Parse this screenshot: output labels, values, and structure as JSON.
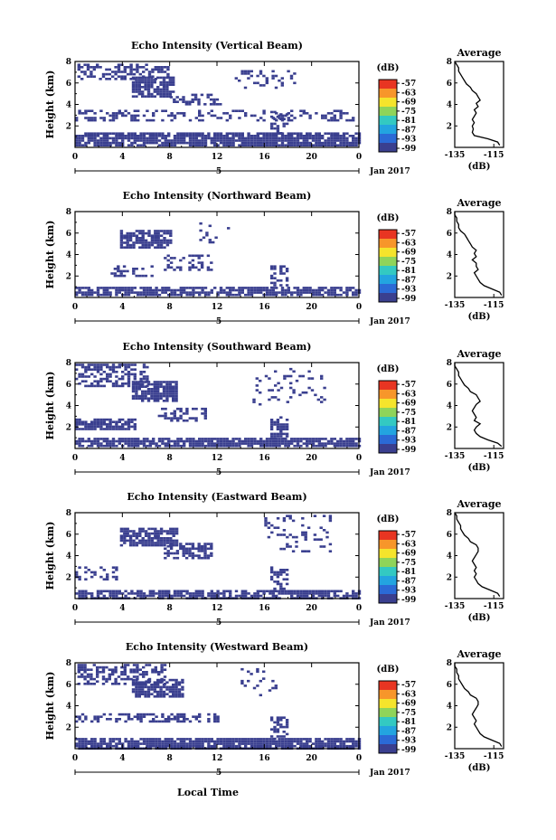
{
  "figure": {
    "xlabel": "Local Time",
    "date_label": "Jan 2017",
    "date_day": "5",
    "colorbar_unit": "(dB)",
    "colorbar_ticks": [
      "-57",
      "-63",
      "-69",
      "-75",
      "-81",
      "-87",
      "-93",
      "-99"
    ],
    "colorbar_colors": [
      "#e83522",
      "#f7962a",
      "#f5e42c",
      "#8fd45a",
      "#33c9c2",
      "#23a4e0",
      "#2b6ad6",
      "#3a3f8f"
    ],
    "main_color": "#3a3f8f"
  },
  "chart_data": [
    {
      "type": "heatmap",
      "title": "Echo Intensity (Vertical Beam)",
      "ylabel": "Height (km)",
      "xticks": [
        "0",
        "4",
        "8",
        "12",
        "16",
        "20",
        "0"
      ],
      "yticks": [
        "2",
        "4",
        "6",
        "8"
      ],
      "xlim": [
        0,
        24
      ],
      "ylim": [
        0,
        8
      ],
      "profile": {
        "title": "Average",
        "xlabel": "(dB)",
        "xticks": [
          "-135",
          "-115"
        ],
        "yticks": [
          "2",
          "4",
          "6",
          "8"
        ],
        "xlim": [
          -135,
          -110
        ],
        "ylim": [
          0,
          8
        ],
        "h": [
          0.2,
          0.5,
          0.8,
          1.1,
          1.4,
          1.7,
          2.0,
          2.3,
          2.6,
          2.9,
          3.2,
          3.5,
          3.8,
          4.1,
          4.4,
          4.7,
          5.0,
          5.3,
          5.6,
          5.9,
          6.2,
          6.5,
          6.8,
          7.1,
          7.4,
          7.7,
          8.0
        ],
        "v": [
          -112,
          -113,
          -118,
          -125,
          -126,
          -125.5,
          -126,
          -125,
          -126,
          -125,
          -124,
          -125,
          -123,
          -124,
          -122,
          -123,
          -124,
          -126,
          -127,
          -129,
          -130,
          -131,
          -132,
          -133,
          -133,
          -134,
          -135
        ]
      }
    },
    {
      "type": "heatmap",
      "title": "Echo Intensity (Northward Beam)",
      "ylabel": "Height (km)",
      "xticks": [
        "0",
        "4",
        "8",
        "12",
        "16",
        "20",
        "0"
      ],
      "yticks": [
        "2",
        "4",
        "6",
        "8"
      ],
      "xlim": [
        0,
        24
      ],
      "ylim": [
        0,
        8
      ],
      "profile": {
        "title": "Average",
        "xlabel": "(dB)",
        "xticks": [
          "-135",
          "-115"
        ],
        "yticks": [
          "2",
          "4",
          "6",
          "8"
        ],
        "xlim": [
          -135,
          -110
        ],
        "ylim": [
          0,
          8
        ],
        "h": [
          0.2,
          0.5,
          0.8,
          1.1,
          1.4,
          1.7,
          2.0,
          2.3,
          2.6,
          2.9,
          3.2,
          3.5,
          3.8,
          4.1,
          4.4,
          4.7,
          5.0,
          5.3,
          5.6,
          5.9,
          6.2,
          6.5,
          6.8,
          7.1,
          7.4,
          7.7,
          8.0
        ],
        "v": [
          -111,
          -112,
          -116,
          -120,
          -122,
          -123,
          -124,
          -125,
          -123,
          -124,
          -124,
          -126,
          -124,
          -125,
          -124,
          -126,
          -127,
          -128,
          -129,
          -130,
          -132,
          -133,
          -133,
          -134,
          -134,
          -135,
          -135
        ]
      }
    },
    {
      "type": "heatmap",
      "title": "Echo Intensity (Southward Beam)",
      "ylabel": "Height (km)",
      "xticks": [
        "0",
        "4",
        "8",
        "12",
        "16",
        "20",
        "0"
      ],
      "yticks": [
        "2",
        "4",
        "6",
        "8"
      ],
      "xlim": [
        0,
        24
      ],
      "ylim": [
        0,
        8
      ],
      "profile": {
        "title": "Average",
        "xlabel": "(dB)",
        "xticks": [
          "-135",
          "-115"
        ],
        "yticks": [
          "2",
          "4",
          "6",
          "8"
        ],
        "xlim": [
          -135,
          -110
        ],
        "ylim": [
          0,
          8
        ],
        "h": [
          0.2,
          0.5,
          0.8,
          1.1,
          1.4,
          1.7,
          2.0,
          2.3,
          2.6,
          2.9,
          3.2,
          3.5,
          3.8,
          4.1,
          4.4,
          4.7,
          5.0,
          5.3,
          5.6,
          5.9,
          6.2,
          6.5,
          6.8,
          7.1,
          7.4,
          7.7,
          8.0
        ],
        "v": [
          -111,
          -113,
          -118,
          -122,
          -124,
          -125,
          -124,
          -122,
          -125,
          -124,
          -125,
          -126,
          -125,
          -124,
          -122,
          -123,
          -124,
          -127,
          -128,
          -130,
          -131,
          -132,
          -133,
          -133,
          -134,
          -135,
          -135
        ]
      }
    },
    {
      "type": "heatmap",
      "title": "Echo Intensity (Eastward Beam)",
      "ylabel": "Height (km)",
      "xticks": [
        "0",
        "4",
        "8",
        "12",
        "16",
        "20",
        "0"
      ],
      "yticks": [
        "2",
        "4",
        "6",
        "8"
      ],
      "xlim": [
        0,
        24
      ],
      "ylim": [
        0,
        8
      ],
      "profile": {
        "title": "Average",
        "xlabel": "(dB)",
        "xticks": [
          "-135",
          "-115"
        ],
        "yticks": [
          "2",
          "4",
          "6",
          "8"
        ],
        "xlim": [
          -135,
          -110
        ],
        "ylim": [
          0,
          8
        ],
        "h": [
          0.2,
          0.5,
          0.8,
          1.1,
          1.4,
          1.7,
          2.0,
          2.3,
          2.6,
          2.9,
          3.2,
          3.5,
          3.8,
          4.1,
          4.4,
          4.7,
          5.0,
          5.3,
          5.6,
          5.9,
          6.2,
          6.5,
          6.8,
          7.1,
          7.4,
          7.7,
          8.0
        ],
        "v": [
          -112,
          -113,
          -117,
          -121,
          -123,
          -124,
          -125,
          -124,
          -125,
          -124,
          -125,
          -126,
          -125,
          -124,
          -123,
          -123,
          -124,
          -127,
          -128,
          -130,
          -131,
          -132,
          -132,
          -133,
          -134,
          -134,
          -135
        ]
      }
    },
    {
      "type": "heatmap",
      "title": "Echo Intensity (Westward Beam)",
      "ylabel": "Height (km)",
      "xticks": [
        "0",
        "4",
        "8",
        "12",
        "16",
        "20",
        "0"
      ],
      "yticks": [
        "2",
        "4",
        "6",
        "8"
      ],
      "xlim": [
        0,
        24
      ],
      "ylim": [
        0,
        8
      ],
      "profile": {
        "title": "Average",
        "xlabel": "(dB)",
        "xticks": [
          "-135",
          "-115"
        ],
        "yticks": [
          "2",
          "4",
          "6",
          "8"
        ],
        "xlim": [
          -135,
          -110
        ],
        "ylim": [
          0,
          8
        ],
        "h": [
          0.2,
          0.5,
          0.8,
          1.1,
          1.4,
          1.7,
          2.0,
          2.3,
          2.6,
          2.9,
          3.2,
          3.5,
          3.8,
          4.1,
          4.4,
          4.7,
          5.0,
          5.3,
          5.6,
          5.9,
          6.2,
          6.5,
          6.8,
          7.1,
          7.4,
          7.7,
          8.0
        ],
        "v": [
          -111,
          -112,
          -116,
          -120,
          -122,
          -123,
          -124,
          -125,
          -124,
          -125,
          -126,
          -125,
          -124,
          -123,
          -123,
          -124,
          -127,
          -128,
          -130,
          -131,
          -132,
          -133,
          -133,
          -134,
          -134,
          -135,
          -135
        ]
      }
    }
  ]
}
